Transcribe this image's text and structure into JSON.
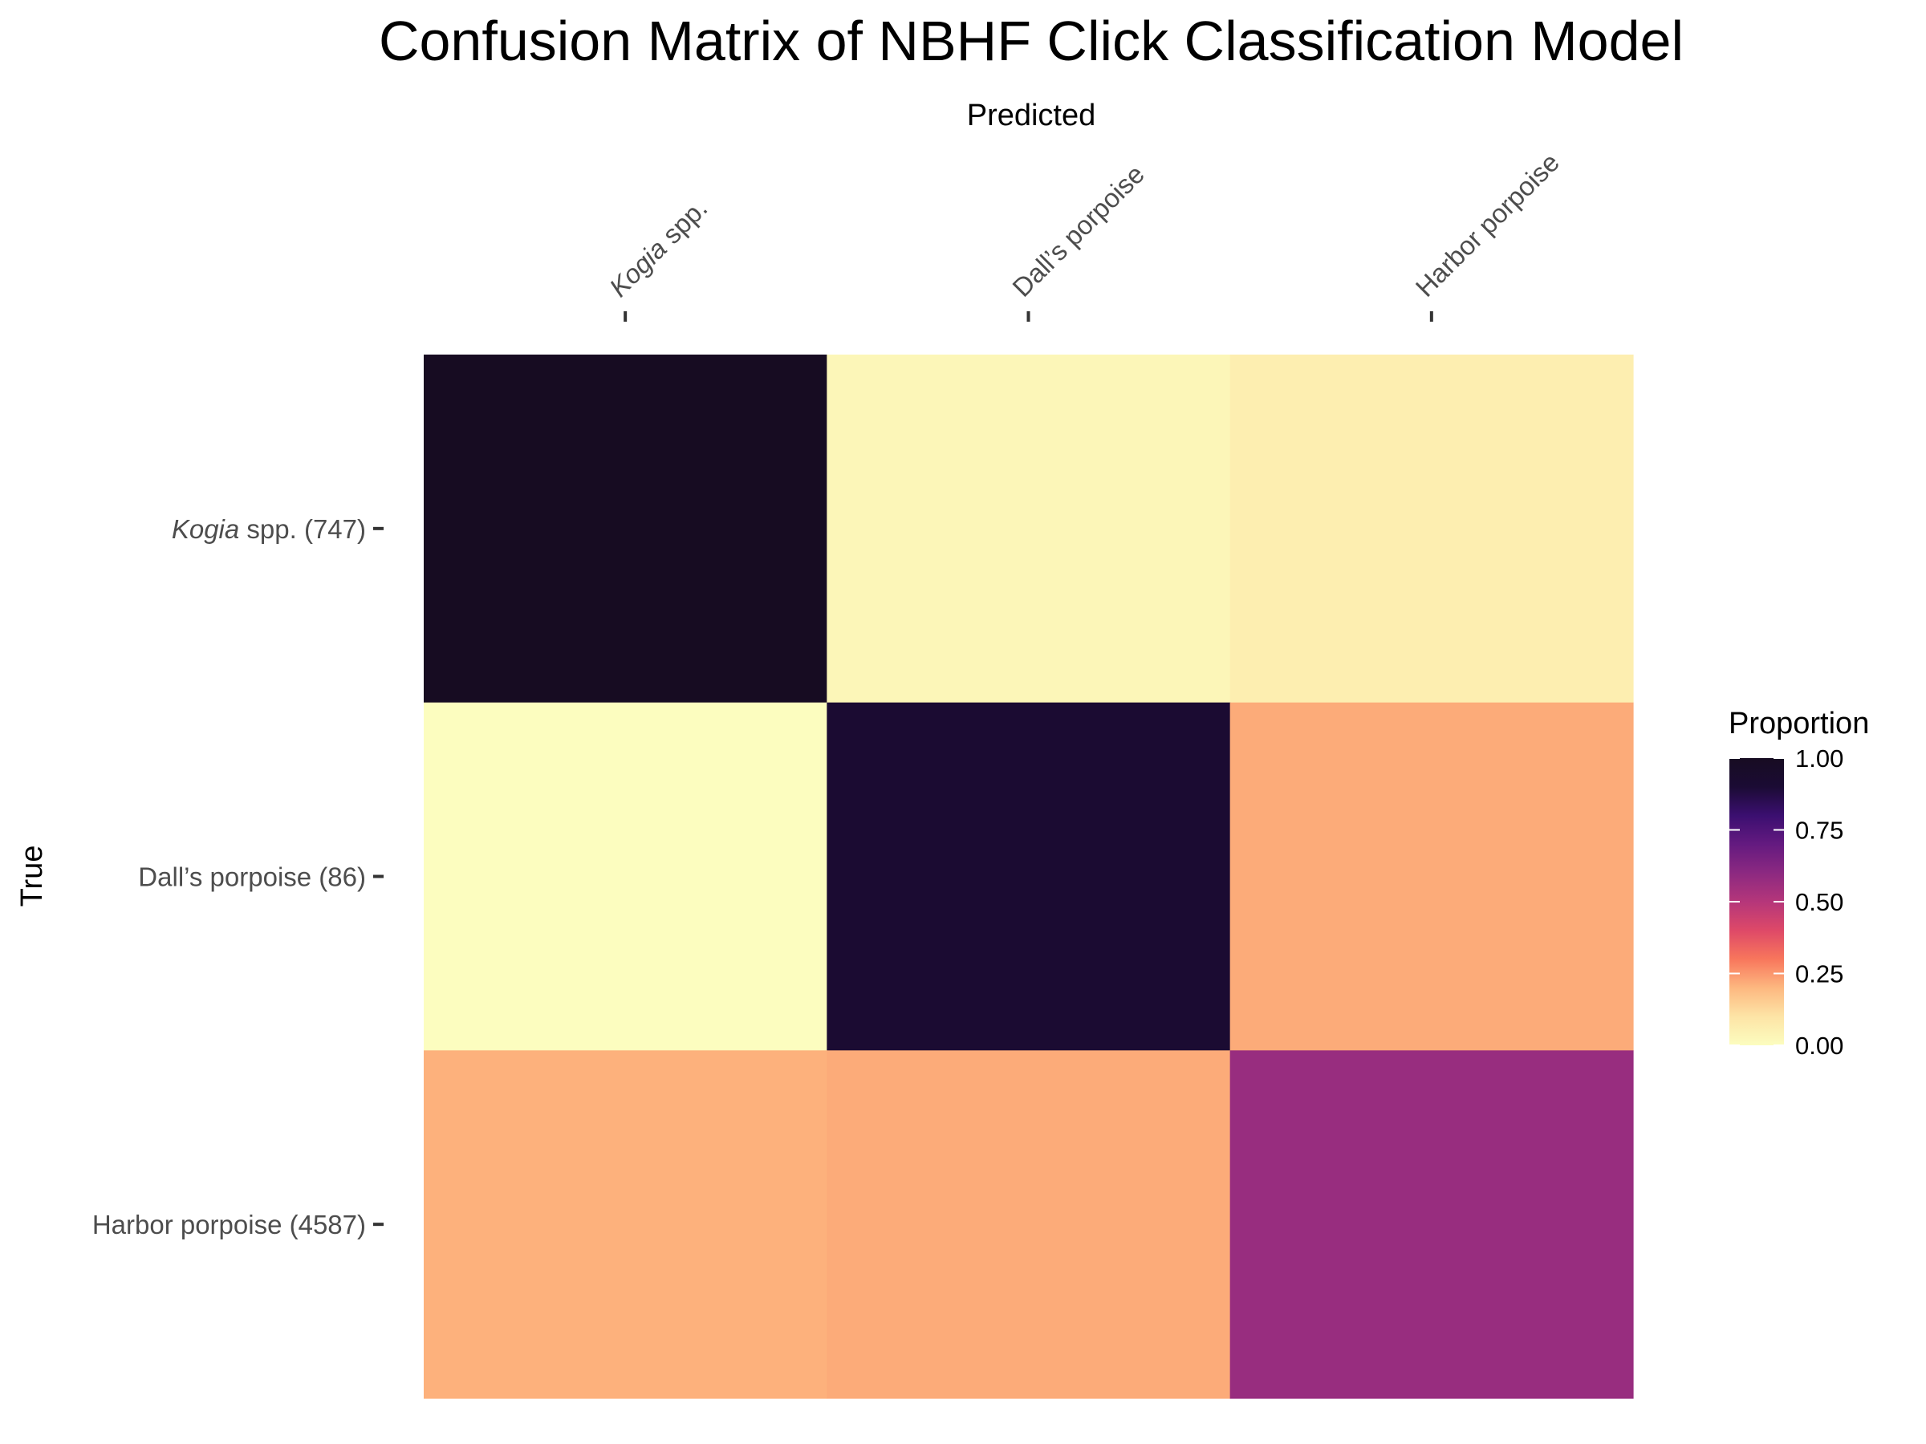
{
  "chart_data": {
    "type": "heatmap",
    "title": "Confusion Matrix of NBHF Click Classification Model",
    "xlabel": "Predicted",
    "ylabel": "True",
    "x_categories": [
      {
        "italic": "Kogia",
        "rest": " spp."
      },
      {
        "italic": "",
        "rest": "Dall’s porpoise"
      },
      {
        "italic": "",
        "rest": "Harbor porpoise"
      }
    ],
    "y_categories": [
      {
        "italic": "Kogia",
        "rest": " spp. (747)"
      },
      {
        "italic": "",
        "rest": "Dall’s porpoise (86)"
      },
      {
        "italic": "",
        "rest": "Harbor porpoise (4587)"
      }
    ],
    "values": [
      [
        1.0,
        0.03,
        0.06
      ],
      [
        0.0,
        0.91,
        0.22
      ],
      [
        0.21,
        0.22,
        0.57
      ]
    ],
    "legend": {
      "title": "Proportion",
      "ticks": [
        "0.00",
        "0.25",
        "0.50",
        "0.75",
        "1.00"
      ],
      "tick_values": [
        0.0,
        0.25,
        0.5,
        0.75,
        1.0
      ],
      "position": "right"
    },
    "colorscale": [
      "#fcfdbf",
      "#fde4a6",
      "#fdb880",
      "#f8765c",
      "#de4968",
      "#b5367a",
      "#8c2981",
      "#641a80",
      "#3b0f70",
      "#1b0b34",
      "#170c22"
    ],
    "grid": false
  }
}
